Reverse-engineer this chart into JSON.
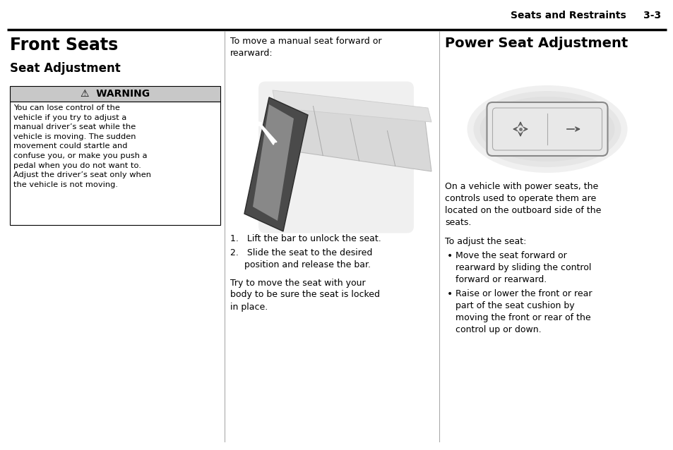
{
  "page_title": "Seats and Restraints",
  "page_number": "3-3",
  "bg_color": "#ffffff",
  "header_line_color": "#000000",
  "col1_title": "Front Seats",
  "col1_subtitle": "Seat Adjustment",
  "warning_bg": "#c8c8c8",
  "warning_border": "#000000",
  "warning_title": "⚠  WARNING",
  "warning_text": "You can lose control of the\nvehicle if you try to adjust a\nmanual driver’s seat while the\nvehicle is moving. The sudden\nmovement could startle and\nconfuse you, or make you push a\npedal when you do not want to.\nAdjust the driver’s seat only when\nthe vehicle is not moving.",
  "col2_intro": "To move a manual seat forward or\nrearward:",
  "col2_step1": "1.   Lift the bar to unlock the seat.",
  "col2_step2": "2.   Slide the seat to the desired\n      position and release the bar.",
  "col2_note": "Try to move the seat with your\nbody to be sure the seat is locked\nin place.",
  "col3_title": "Power Seat Adjustment",
  "col3_text1": "On a vehicle with power seats, the\ncontrols used to operate them are\nlocated on the outboard side of the\nseats.",
  "col3_text2": "To adjust the seat:",
  "col3_bullet1": "Move the seat forward or\nrearward by sliding the control\nforward or rearward.",
  "col3_bullet2": "Raise or lower the front or rear\npart of the seat cushion by\nmoving the front or rear of the\ncontrol up or down.",
  "col_divider_color": "#aaaaaa",
  "text_color": "#000000"
}
